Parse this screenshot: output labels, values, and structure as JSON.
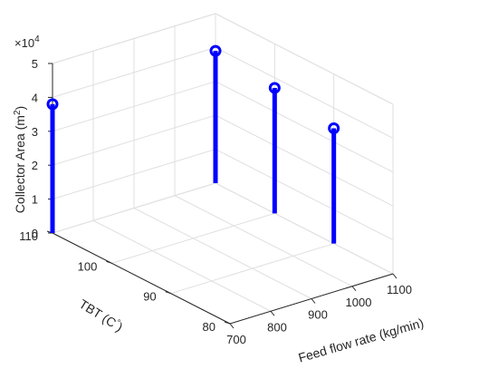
{
  "chart_data": {
    "type": "stem3",
    "title": "",
    "xlabel": "Feed flow rate (kg/min)",
    "ylabel": "TBT (C",
    "ylabel_sup": "°",
    "ylabel_close": ")",
    "zlabel": "Collector Area (m",
    "zlabel_sup": "2",
    "zlabel_close": ")",
    "z_exponent_label": "×10",
    "z_exponent_power": "4",
    "xlim": [
      700,
      1100
    ],
    "ylim": [
      80,
      110
    ],
    "zlim": [
      0,
      5
    ],
    "z_scale": 10000,
    "x_ticks": [
      "700",
      "800",
      "900",
      "1000",
      "1100"
    ],
    "y_ticks": [
      "80",
      "90",
      "100",
      "110"
    ],
    "z_ticks": [
      "0",
      "1",
      "2",
      "3",
      "4",
      "5"
    ],
    "grid": true,
    "color": "#0000ff",
    "points": [
      {
        "x": 700,
        "y": 110,
        "z": 3.8
      },
      {
        "x": 1100,
        "y": 110,
        "z": 3.9
      },
      {
        "x": 1100,
        "y": 100,
        "z": 3.7
      },
      {
        "x": 1100,
        "y": 90,
        "z": 3.4
      }
    ]
  }
}
